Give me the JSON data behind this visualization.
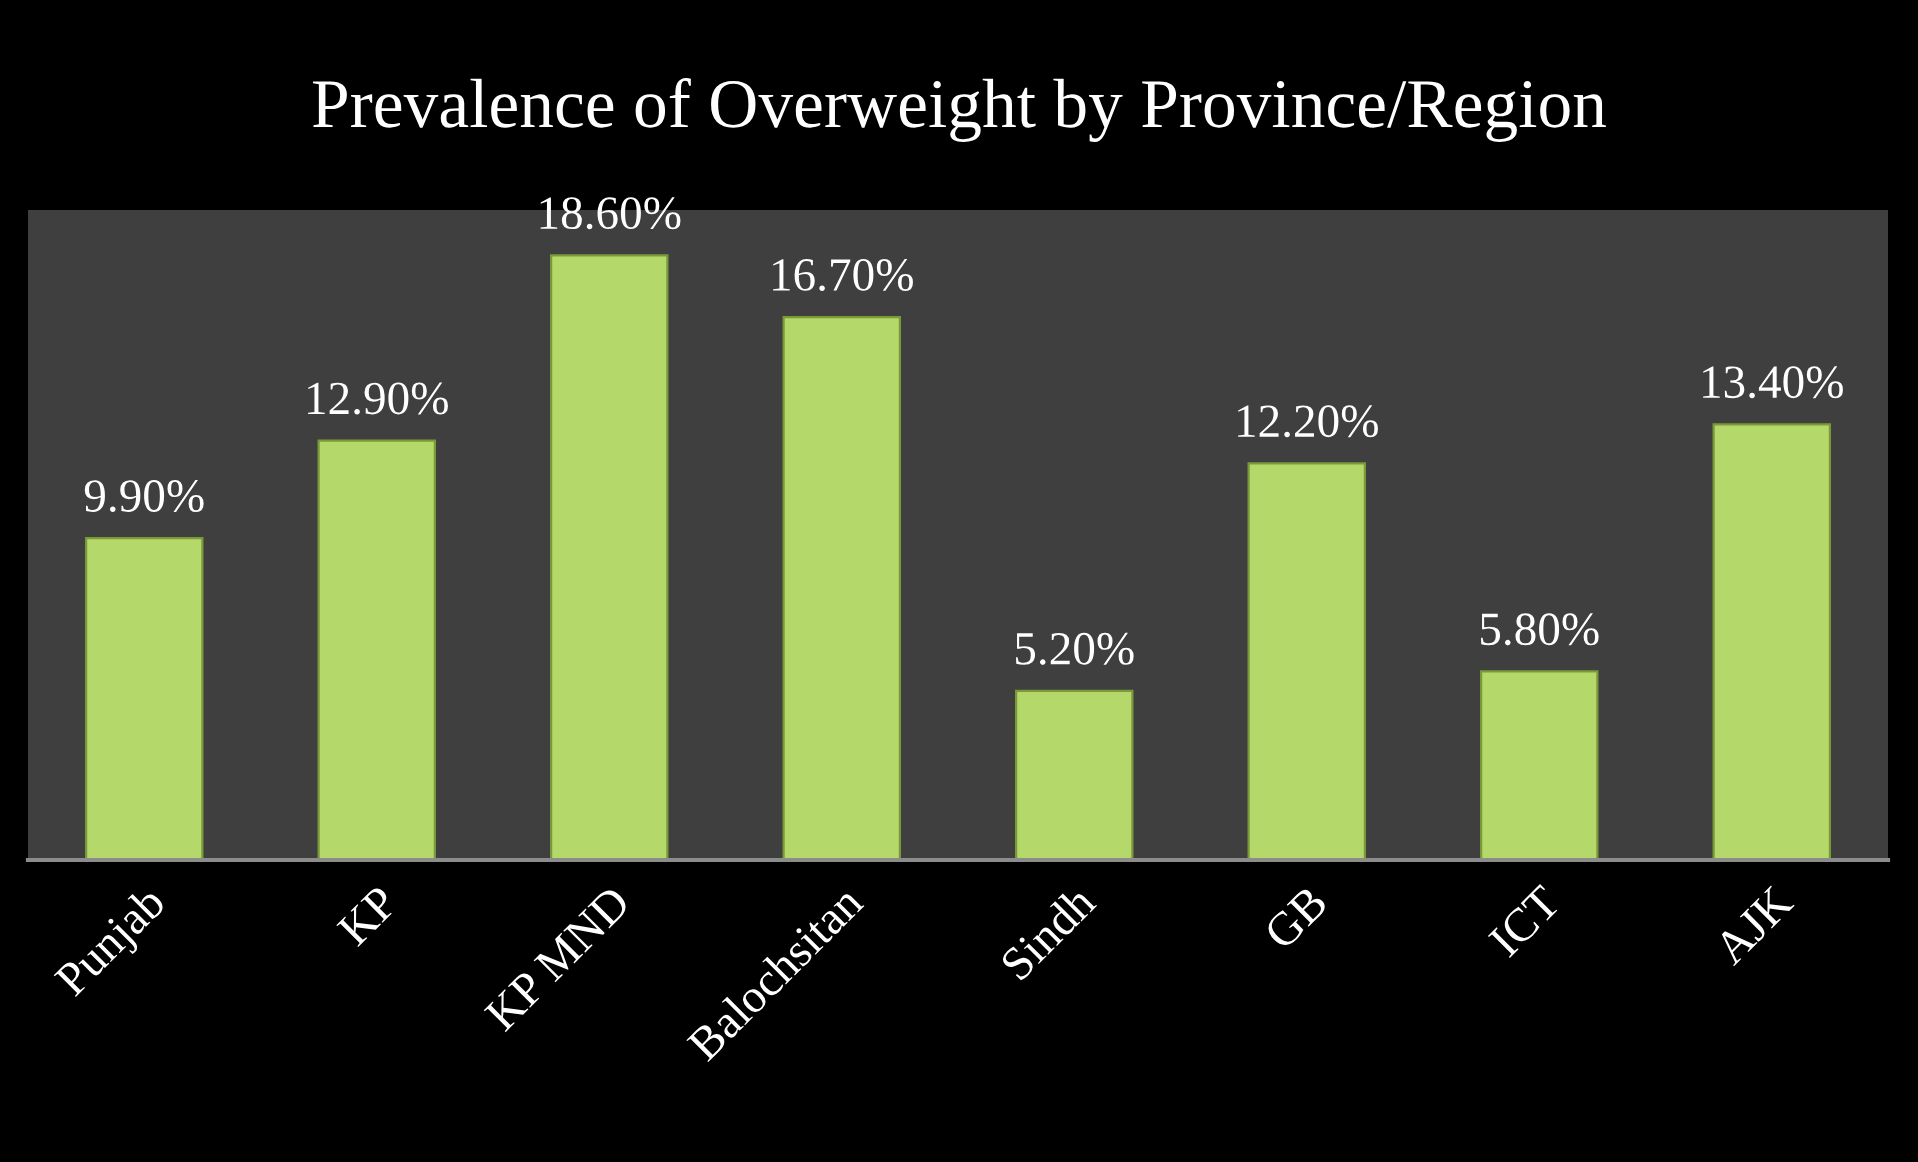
{
  "chart_data": {
    "type": "bar",
    "title": "Prevalence of Overweight by Province/Region",
    "categories": [
      "Punjab",
      "KP",
      "KP MND",
      "Balochsitan",
      "Sindh",
      "GB",
      "ICT",
      "AJK"
    ],
    "values": [
      9.9,
      12.9,
      18.6,
      16.7,
      5.2,
      12.2,
      5.8,
      13.4
    ],
    "value_labels": [
      "9.90%",
      "12.90%",
      "18.60%",
      "16.70%",
      "5.20%",
      "12.20%",
      "5.80%",
      "13.40%"
    ],
    "color": "#b4d96a",
    "grid": false,
    "legend": false
  }
}
